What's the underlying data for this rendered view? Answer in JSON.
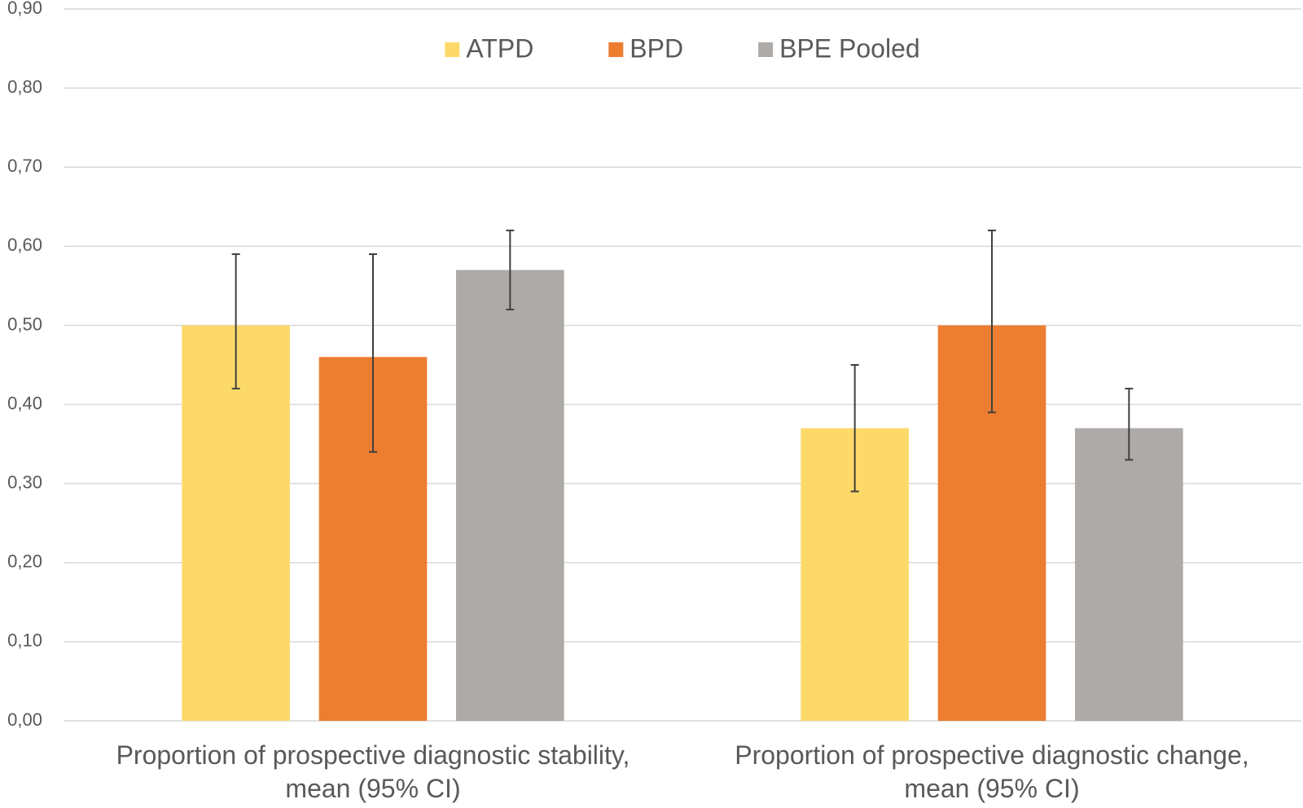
{
  "chart_data": {
    "type": "bar",
    "categories": [
      "Proportion of prospective diagnostic stability,\nmean (95% CI)",
      "Proportion of prospective diagnostic change,\nmean (95% CI)"
    ],
    "series": [
      {
        "name": "ATPD",
        "color": "#FDD96A",
        "values": [
          0.5,
          0.37
        ],
        "ci_low": [
          0.42,
          0.29
        ],
        "ci_high": [
          0.59,
          0.45
        ]
      },
      {
        "name": "BPD",
        "color": "#ED7D31",
        "values": [
          0.46,
          0.5
        ],
        "ci_low": [
          0.34,
          0.39
        ],
        "ci_high": [
          0.59,
          0.62
        ]
      },
      {
        "name": "BPE Pooled",
        "color": "#ADAAA8",
        "values": [
          0.57,
          0.37
        ],
        "ci_low": [
          0.52,
          0.33
        ],
        "ci_high": [
          0.62,
          0.42
        ]
      }
    ],
    "ylim": [
      0,
      0.9
    ],
    "yticks": [
      {
        "value": 0,
        "label": "0,00"
      },
      {
        "value": 0.1,
        "label": "0,10"
      },
      {
        "value": 0.2,
        "label": "0,20"
      },
      {
        "value": 0.3,
        "label": "0,30"
      },
      {
        "value": 0.4,
        "label": "0,40"
      },
      {
        "value": 0.5,
        "label": "0,50"
      },
      {
        "value": 0.6,
        "label": "0,60"
      },
      {
        "value": 0.7,
        "label": "0,70"
      },
      {
        "value": 0.8,
        "label": "0,80"
      },
      {
        "value": 0.9,
        "label": "0,90"
      }
    ],
    "grid": true,
    "legend": "top"
  }
}
